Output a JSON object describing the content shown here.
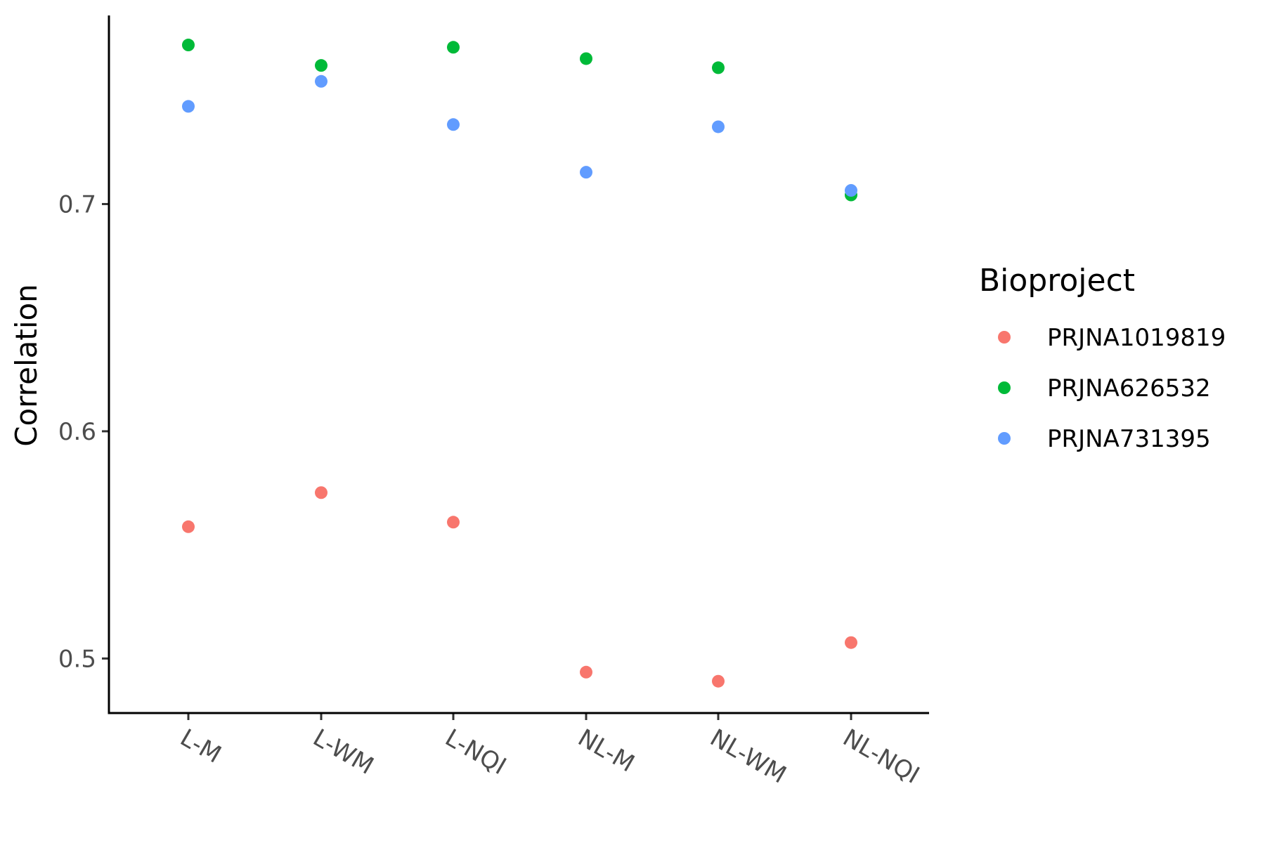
{
  "chart_data": {
    "type": "scatter",
    "categories": [
      "L-M",
      "L-WM",
      "L-NQI",
      "NL-M",
      "NL-WM",
      "NL-NQI"
    ],
    "ylabel": "Correlation",
    "xlabel": "",
    "ylim": [
      0.476,
      0.783
    ],
    "yticks": [
      0.5,
      0.6,
      0.7
    ],
    "ytick_labels": [
      "0.5",
      "0.6",
      "0.7"
    ],
    "grid": false,
    "legend": {
      "title": "Bioproject",
      "position": "right"
    },
    "series": [
      {
        "name": "PRJNA1019819",
        "color": "#F8766D",
        "values": [
          0.558,
          0.573,
          0.56,
          0.494,
          0.49,
          0.507
        ]
      },
      {
        "name": "PRJNA626532",
        "color": "#00BA38",
        "values": [
          0.77,
          0.761,
          0.769,
          0.764,
          0.76,
          0.704
        ]
      },
      {
        "name": "PRJNA731395",
        "color": "#619CFF",
        "values": [
          0.743,
          0.754,
          0.735,
          0.714,
          0.734,
          0.706
        ]
      }
    ]
  }
}
